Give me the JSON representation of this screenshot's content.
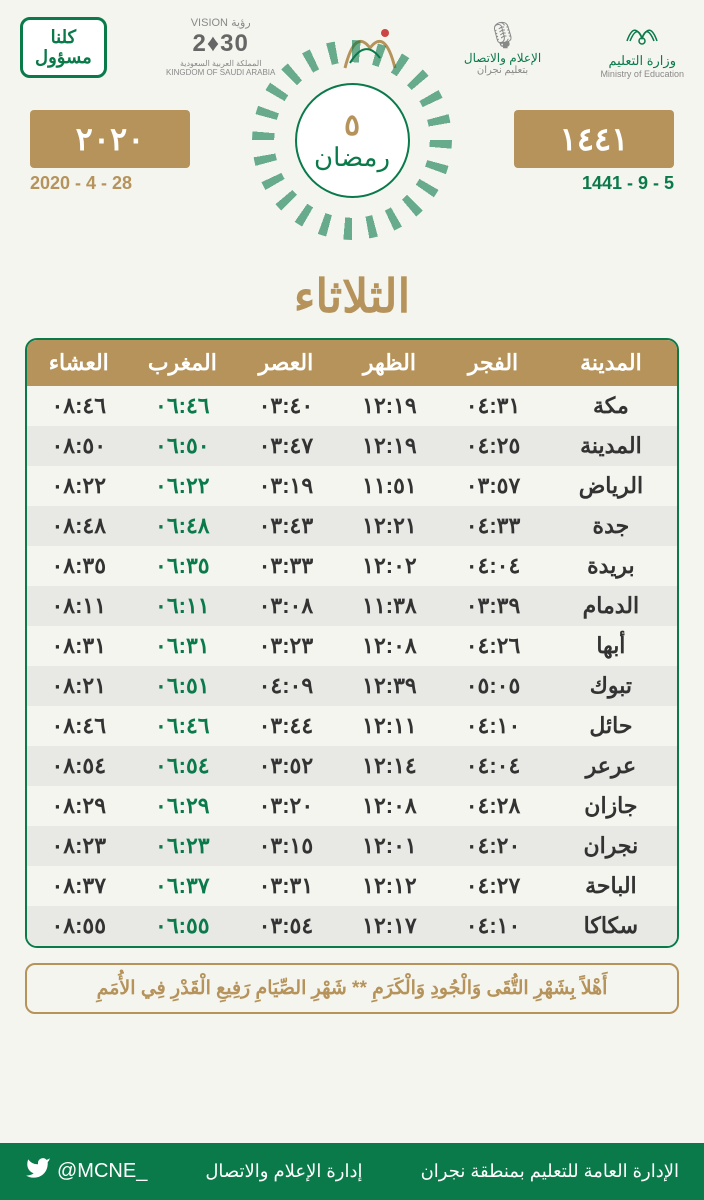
{
  "header": {
    "kullana_line1": "كلنا",
    "kullana_line2": "مسؤول",
    "vision_top": "VISION رؤية",
    "vision_year": "2♦30",
    "vision_sub": "المملكة العربية السعودية\nKINGDOM OF SAUDI ARABIA",
    "media_line1": "الإعلام والاتصال",
    "media_line2": "بتعليم نجران",
    "moe_line1": "وزارة التعليم",
    "moe_line2": "Ministry of Education"
  },
  "dates": {
    "gregorian_year_ar": "٢٠٢٠",
    "hijri_year_ar": "١٤٤١",
    "gregorian_full": "2020 - 4 - 28",
    "hijri_full": "1441 - 9 - 5",
    "ramadan_day": "٥",
    "ramadan_label": "رمضان",
    "day_name": "الثلاثاء"
  },
  "table": {
    "columns": [
      "المدينة",
      "الفجر",
      "الظهر",
      "العصر",
      "المغرب",
      "العشاء"
    ],
    "rows": [
      {
        "city": "مكة",
        "fajr": "٠٤:٣١",
        "dhuhr": "١٢:١٩",
        "asr": "٠٣:٤٠",
        "maghrib": "٠٦:٤٦",
        "isha": "٠٨:٤٦"
      },
      {
        "city": "المدينة",
        "fajr": "٠٤:٢٥",
        "dhuhr": "١٢:١٩",
        "asr": "٠٣:٤٧",
        "maghrib": "٠٦:٥٠",
        "isha": "٠٨:٥٠"
      },
      {
        "city": "الرياض",
        "fajr": "٠٣:٥٧",
        "dhuhr": "١١:٥١",
        "asr": "٠٣:١٩",
        "maghrib": "٠٦:٢٢",
        "isha": "٠٨:٢٢"
      },
      {
        "city": "جدة",
        "fajr": "٠٤:٣٣",
        "dhuhr": "١٢:٢١",
        "asr": "٠٣:٤٣",
        "maghrib": "٠٦:٤٨",
        "isha": "٠٨:٤٨"
      },
      {
        "city": "بريدة",
        "fajr": "٠٤:٠٤",
        "dhuhr": "١٢:٠٢",
        "asr": "٠٣:٣٣",
        "maghrib": "٠٦:٣٥",
        "isha": "٠٨:٣٥"
      },
      {
        "city": "الدمام",
        "fajr": "٠٣:٣٩",
        "dhuhr": "١١:٣٨",
        "asr": "٠٣:٠٨",
        "maghrib": "٠٦:١١",
        "isha": "٠٨:١١"
      },
      {
        "city": "أبها",
        "fajr": "٠٤:٢٦",
        "dhuhr": "١٢:٠٨",
        "asr": "٠٣:٢٣",
        "maghrib": "٠٦:٣١",
        "isha": "٠٨:٣١"
      },
      {
        "city": "تبوك",
        "fajr": "٠٥:٠٥",
        "dhuhr": "١٢:٣٩",
        "asr": "٠٤:٠٩",
        "maghrib": "٠٦:٥١",
        "isha": "٠٨:٢١"
      },
      {
        "city": "حائل",
        "fajr": "٠٤:١٠",
        "dhuhr": "١٢:١١",
        "asr": "٠٣:٤٤",
        "maghrib": "٠٦:٤٦",
        "isha": "٠٨:٤٦"
      },
      {
        "city": "عرعر",
        "fajr": "٠٤:٠٤",
        "dhuhr": "١٢:١٤",
        "asr": "٠٣:٥٢",
        "maghrib": "٠٦:٥٤",
        "isha": "٠٨:٥٤"
      },
      {
        "city": "جازان",
        "fajr": "٠٤:٢٨",
        "dhuhr": "١٢:٠٨",
        "asr": "٠٣:٢٠",
        "maghrib": "٠٦:٢٩",
        "isha": "٠٨:٢٩"
      },
      {
        "city": "نجران",
        "fajr": "٠٤:٢٠",
        "dhuhr": "١٢:٠١",
        "asr": "٠٣:١٥",
        "maghrib": "٠٦:٢٣",
        "isha": "٠٨:٢٣"
      },
      {
        "city": "الباحة",
        "fajr": "٠٤:٢٧",
        "dhuhr": "١٢:١٢",
        "asr": "٠٣:٣١",
        "maghrib": "٠٦:٣٧",
        "isha": "٠٨:٣٧"
      },
      {
        "city": "سكاكا",
        "fajr": "٠٤:١٠",
        "dhuhr": "١٢:١٧",
        "asr": "٠٣:٥٤",
        "maghrib": "٠٦:٥٥",
        "isha": "٠٨:٥٥"
      }
    ]
  },
  "quote": "أَهْلاً بِشَهْرِ التُّقَى وَالْجُودِ وَالْكَرَمِ ** شَهْرِ الصِّيَامِ رَفِيعِ الْقَدْرِ فِي الأُمَمِ",
  "footer": {
    "org": "الإدارة العامة للتعليم بمنطقة نجران",
    "dept": "إدارة الإعلام والاتصال",
    "twitter": "@MCNE_"
  },
  "colors": {
    "gold": "#b5935a",
    "green": "#0a7a4a",
    "bg": "#f5f5f0",
    "row_alt": "#e8e8e4"
  }
}
